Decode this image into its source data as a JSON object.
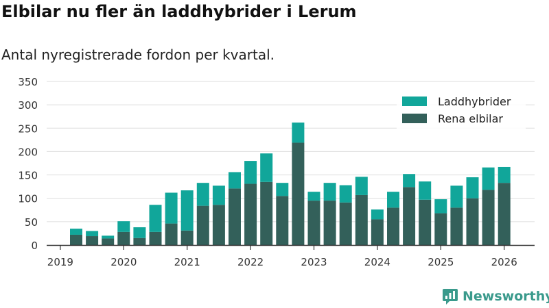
{
  "title": "Elbilar nu fler än laddhybrider i Lerum",
  "subtitle": "Antal nyregistrerade fordon per kvartal.",
  "brand": "Newsworthy",
  "colors": {
    "laddhybrider": "#11a69a",
    "rena_elbilar": "#33605a",
    "grid": "#dddddd",
    "axis": "#333333",
    "brand": "#3a9a8c"
  },
  "chart_data": {
    "type": "bar",
    "stacked": true,
    "categories": [
      "2019 Q2",
      "2019 Q3",
      "2019 Q4",
      "2020 Q1",
      "2020 Q2",
      "2020 Q3",
      "2020 Q4",
      "2021 Q1",
      "2021 Q2",
      "2021 Q3",
      "2021 Q4",
      "2022 Q1",
      "2022 Q2",
      "2022 Q3",
      "2022 Q4",
      "2023 Q1",
      "2023 Q2",
      "2023 Q3",
      "2023 Q4",
      "2024 Q1",
      "2024 Q2",
      "2024 Q3",
      "2024 Q4",
      "2025 Q1",
      "2025 Q2",
      "2025 Q3",
      "2025 Q4",
      "2026 Q1"
    ],
    "x_tick_labels": [
      "2019",
      "2020",
      "2021",
      "2022",
      "2023",
      "2024",
      "2025",
      "2026"
    ],
    "series": [
      {
        "name": "Rena elbilar",
        "values": [
          22,
          19,
          14,
          28,
          15,
          28,
          46,
          31,
          84,
          86,
          121,
          131,
          135,
          105,
          219,
          95,
          95,
          91,
          107,
          55,
          80,
          124,
          97,
          68,
          80,
          100,
          118,
          133
        ]
      },
      {
        "name": "Laddhybrider",
        "values": [
          13,
          11,
          6,
          23,
          23,
          58,
          66,
          86,
          49,
          41,
          35,
          49,
          61,
          28,
          43,
          19,
          38,
          37,
          39,
          21,
          34,
          28,
          39,
          30,
          47,
          45,
          48,
          34
        ]
      }
    ],
    "ylim": [
      0,
      350
    ],
    "yticks": [
      0,
      50,
      100,
      150,
      200,
      250,
      300,
      350
    ],
    "grid": true,
    "legend_placement": "top-right",
    "xlabel": "",
    "ylabel": ""
  }
}
